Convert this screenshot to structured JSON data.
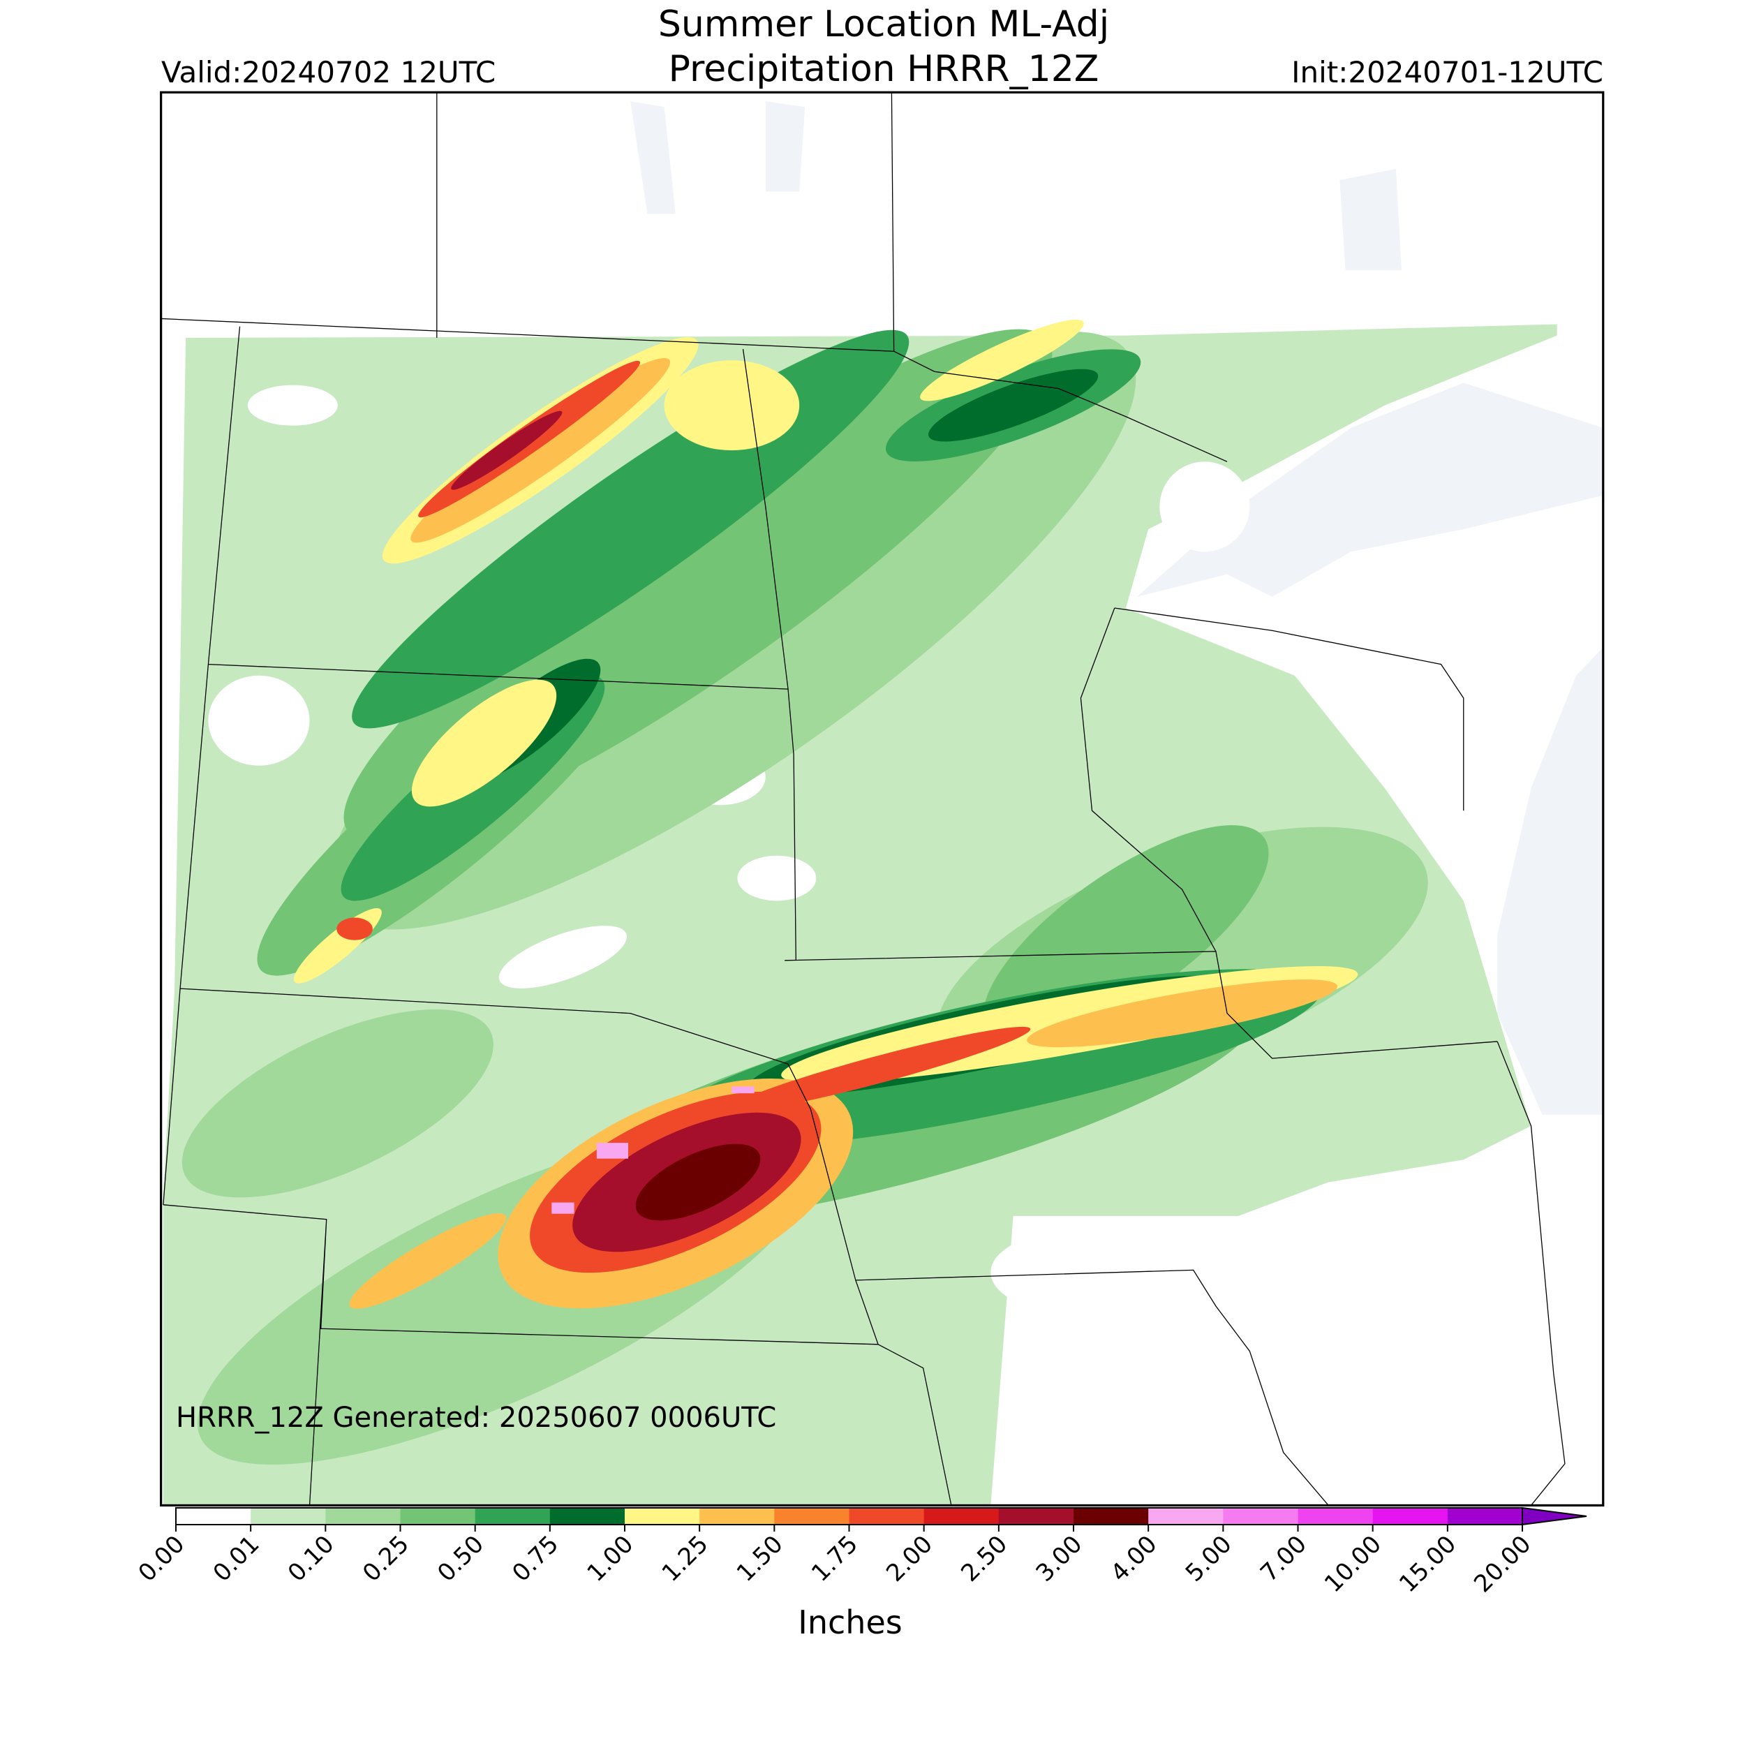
{
  "title": "Summer Location ML-Adj",
  "subtitle": "Precipitation HRRR_12Z",
  "valid": "Valid:20240702 12UTC",
  "init": "Init:20240701-12UTC",
  "generated": "HRRR_12Z Generated: 20250607 0006UTC",
  "colorbar": {
    "label": "Inches",
    "ticks": [
      {
        "value": 0,
        "label": "0.00"
      },
      {
        "value": 0.01,
        "label": "0.01"
      },
      {
        "value": 0.1,
        "label": "0.10"
      },
      {
        "value": 0.25,
        "label": "0.25"
      },
      {
        "value": 0.5,
        "label": "0.50"
      },
      {
        "value": 0.75,
        "label": "0.75"
      },
      {
        "value": 1,
        "label": "1.00"
      },
      {
        "value": 1.25,
        "label": "1.25"
      },
      {
        "value": 1.5,
        "label": "1.50"
      },
      {
        "value": 1.75,
        "label": "1.75"
      },
      {
        "value": 2,
        "label": "2.00"
      },
      {
        "value": 2.5,
        "label": "2.50"
      },
      {
        "value": 3,
        "label": "3.00"
      },
      {
        "value": 4,
        "label": "4.00"
      },
      {
        "value": 5,
        "label": "5.00"
      },
      {
        "value": 7,
        "label": "7.00"
      },
      {
        "value": 10,
        "label": "10.00"
      },
      {
        "value": 15,
        "label": "15.00"
      },
      {
        "value": 20,
        "label": "20.00"
      }
    ],
    "colors": [
      "#ffffff",
      "#c7e9c0",
      "#a1d99b",
      "#74c476",
      "#31a354",
      "#006d2c",
      "#fff685",
      "#fdc04f",
      "#f9832c",
      "#f0492a",
      "#d7191c",
      "#a50f2c",
      "#6b0000",
      "#f8a8f0",
      "#f57cf0",
      "#f043f0",
      "#e614f0",
      "#a000d0"
    ],
    "extend_color": "#7f00c0"
  }
}
